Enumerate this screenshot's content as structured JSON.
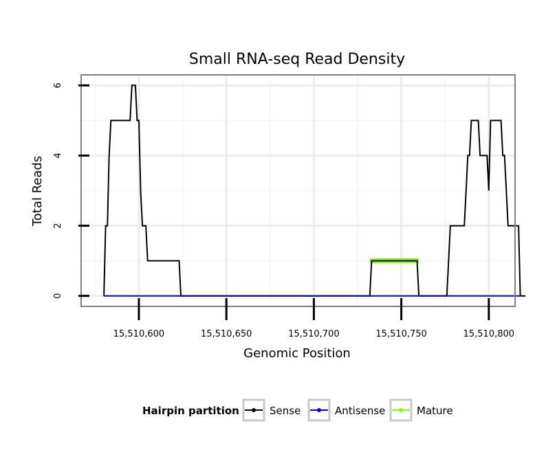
{
  "chart_data": {
    "type": "line",
    "title": "Small RNA-seq Read Density",
    "xlabel": "Genomic Position",
    "ylabel": "Total Reads",
    "xlim": [
      15510567,
      15510815
    ],
    "ylim": [
      -0.3,
      6.3
    ],
    "x_ticks": [
      15510600,
      15510650,
      15510700,
      15510750,
      15510800
    ],
    "x_tick_labels": [
      "15,510,600",
      "15,510,650",
      "15,510,700",
      "15,510,750",
      "15,510,800"
    ],
    "y_ticks": [
      0,
      2,
      4,
      6
    ],
    "y_tick_labels": [
      "0",
      "2",
      "4",
      "6"
    ],
    "grid": true,
    "legend": {
      "title": "Hairpin partition",
      "position": "bottom",
      "entries": [
        "Sense",
        "Antisense",
        "Mature"
      ]
    },
    "series": [
      {
        "name": "Sense",
        "color": "#000000",
        "points": [
          [
            15510580,
            0
          ],
          [
            15510581,
            2
          ],
          [
            15510582,
            2
          ],
          [
            15510583,
            4
          ],
          [
            15510584,
            5
          ],
          [
            15510595,
            5
          ],
          [
            15510596,
            6
          ],
          [
            15510598,
            6
          ],
          [
            15510599,
            5
          ],
          [
            15510600,
            5
          ],
          [
            15510601,
            3
          ],
          [
            15510602,
            2
          ],
          [
            15510604,
            2
          ],
          [
            15510605,
            1
          ],
          [
            15510623,
            1
          ],
          [
            15510624,
            0
          ],
          [
            15510732,
            0
          ],
          [
            15510733,
            1
          ],
          [
            15510759,
            1
          ],
          [
            15510760,
            0
          ],
          [
            15510776,
            0
          ],
          [
            15510778,
            2
          ],
          [
            15510786,
            2
          ],
          [
            15510787,
            3
          ],
          [
            15510788,
            4
          ],
          [
            15510789,
            4
          ],
          [
            15510790,
            5
          ],
          [
            15510794,
            5
          ],
          [
            15510795,
            4
          ],
          [
            15510799,
            4
          ],
          [
            15510800,
            3
          ],
          [
            15510801,
            5
          ],
          [
            15510807,
            5
          ],
          [
            15510808,
            4
          ],
          [
            15510809,
            4
          ],
          [
            15510810,
            3
          ],
          [
            15510811,
            2
          ],
          [
            15510817,
            2
          ],
          [
            15510818,
            0
          ],
          [
            15510821,
            0
          ]
        ]
      },
      {
        "name": "Antisense",
        "color": "#0000ff",
        "points": [
          [
            15510580,
            0
          ],
          [
            15510818,
            0
          ]
        ]
      },
      {
        "name": "Mature",
        "color": "#7fff00",
        "points": [
          [
            15510732,
            1
          ],
          [
            15510760,
            1
          ]
        ]
      }
    ]
  }
}
